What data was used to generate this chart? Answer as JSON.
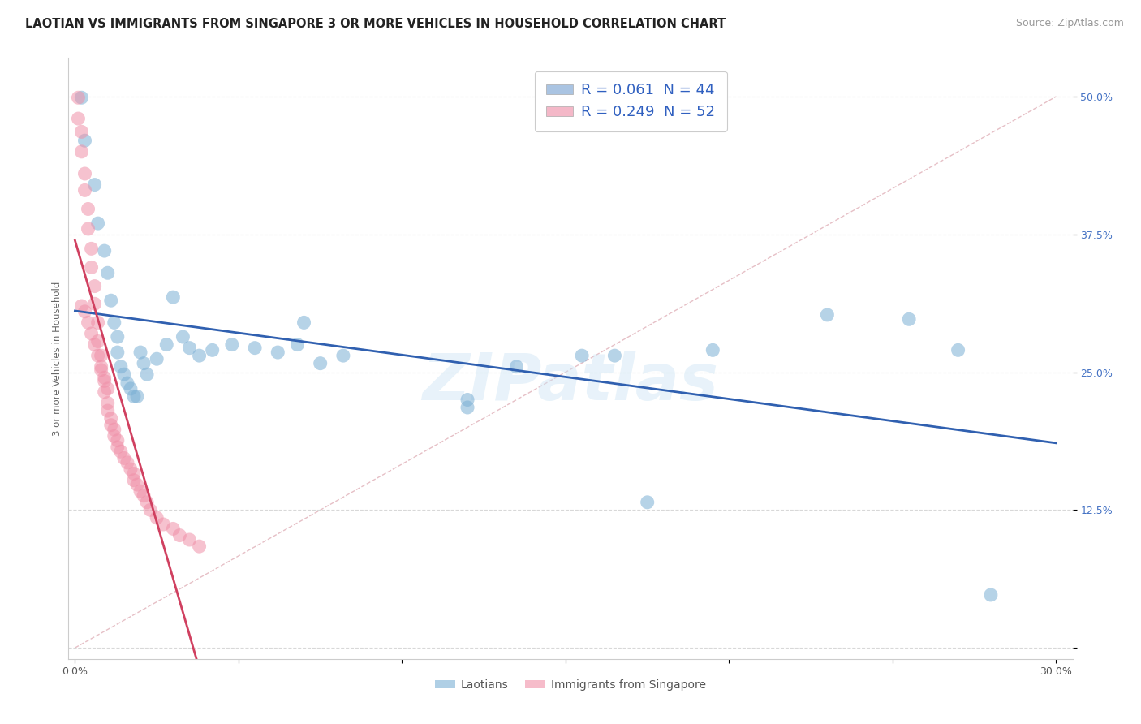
{
  "title": "LAOTIAN VS IMMIGRANTS FROM SINGAPORE 3 OR MORE VEHICLES IN HOUSEHOLD CORRELATION CHART",
  "source": "Source: ZipAtlas.com",
  "ylabel": "3 or more Vehicles in Household",
  "x_ticks": [
    0.0,
    0.05,
    0.1,
    0.15,
    0.2,
    0.25,
    0.3
  ],
  "y_ticks": [
    0.0,
    0.125,
    0.25,
    0.375,
    0.5
  ],
  "xlim": [
    -0.002,
    0.305
  ],
  "ylim": [
    -0.01,
    0.535
  ],
  "legend_entries": [
    {
      "label": "R = 0.061  N = 44",
      "color": "#aac4e2"
    },
    {
      "label": "R = 0.249  N = 52",
      "color": "#f4b8c8"
    }
  ],
  "legend_bottom": [
    "Laotians",
    "Immigrants from Singapore"
  ],
  "laotian_color": "#7bafd4",
  "singapore_color": "#f090a8",
  "trend_laotian_color": "#3060b0",
  "trend_singapore_color": "#d04060",
  "ref_line_color": "#c8c8c8",
  "background_color": "#ffffff",
  "grid_color": "#d8d8d8",
  "laotian_x": [
    0.002,
    0.003,
    0.006,
    0.007,
    0.009,
    0.01,
    0.011,
    0.012,
    0.013,
    0.013,
    0.014,
    0.015,
    0.016,
    0.017,
    0.018,
    0.019,
    0.02,
    0.021,
    0.022,
    0.025,
    0.028,
    0.03,
    0.033,
    0.035,
    0.038,
    0.042,
    0.048,
    0.055,
    0.062,
    0.068,
    0.075,
    0.082,
    0.12,
    0.135,
    0.155,
    0.165,
    0.175,
    0.195,
    0.23,
    0.255,
    0.27,
    0.28,
    0.12,
    0.07
  ],
  "laotian_y": [
    0.499,
    0.46,
    0.42,
    0.385,
    0.36,
    0.34,
    0.315,
    0.295,
    0.282,
    0.268,
    0.255,
    0.248,
    0.24,
    0.235,
    0.228,
    0.228,
    0.268,
    0.258,
    0.248,
    0.262,
    0.275,
    0.318,
    0.282,
    0.272,
    0.265,
    0.27,
    0.275,
    0.272,
    0.268,
    0.275,
    0.258,
    0.265,
    0.225,
    0.255,
    0.265,
    0.265,
    0.132,
    0.27,
    0.302,
    0.298,
    0.27,
    0.048,
    0.218,
    0.295
  ],
  "singapore_x": [
    0.001,
    0.001,
    0.002,
    0.002,
    0.003,
    0.003,
    0.004,
    0.004,
    0.005,
    0.005,
    0.006,
    0.006,
    0.007,
    0.007,
    0.008,
    0.008,
    0.009,
    0.009,
    0.01,
    0.01,
    0.011,
    0.011,
    0.012,
    0.012,
    0.013,
    0.013,
    0.014,
    0.015,
    0.016,
    0.017,
    0.018,
    0.018,
    0.019,
    0.02,
    0.021,
    0.022,
    0.023,
    0.025,
    0.027,
    0.03,
    0.032,
    0.035,
    0.038,
    0.002,
    0.003,
    0.004,
    0.005,
    0.006,
    0.007,
    0.008,
    0.009,
    0.01
  ],
  "singapore_y": [
    0.499,
    0.48,
    0.468,
    0.45,
    0.43,
    0.415,
    0.398,
    0.38,
    0.362,
    0.345,
    0.328,
    0.312,
    0.295,
    0.278,
    0.265,
    0.252,
    0.242,
    0.232,
    0.222,
    0.215,
    0.208,
    0.202,
    0.198,
    0.192,
    0.188,
    0.182,
    0.178,
    0.172,
    0.168,
    0.162,
    0.158,
    0.152,
    0.148,
    0.142,
    0.138,
    0.132,
    0.125,
    0.118,
    0.112,
    0.108,
    0.102,
    0.098,
    0.092,
    0.31,
    0.305,
    0.295,
    0.285,
    0.275,
    0.265,
    0.255,
    0.245,
    0.235
  ],
  "watermark": "ZIPatlas",
  "title_fontsize": 10.5,
  "axis_label_fontsize": 8.5,
  "tick_fontsize": 9,
  "legend_fontsize": 13,
  "source_fontsize": 9
}
